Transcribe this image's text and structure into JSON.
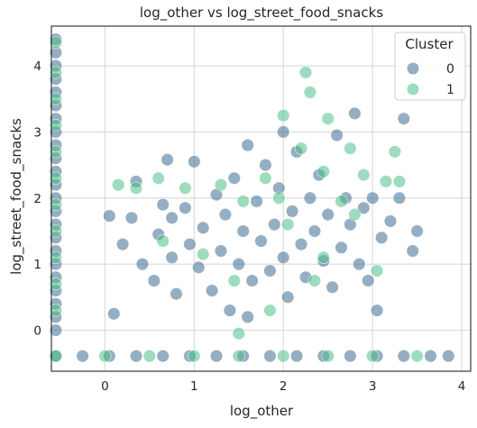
{
  "chart_data": {
    "type": "scatter",
    "title": "log_other vs log_street_food_snacks",
    "xlabel": "log_other",
    "ylabel": "log_street_food_snacks",
    "xlim": [
      -0.6,
      4.1
    ],
    "ylim": [
      -0.62,
      4.6
    ],
    "xticks": [
      0,
      1,
      2,
      3,
      4
    ],
    "yticks": [
      0,
      1,
      2,
      3,
      4
    ],
    "grid": true,
    "legend": {
      "title": "Cluster",
      "placement": "top-right"
    },
    "series": [
      {
        "name": "0",
        "color": "#3e6b8f",
        "points": [
          [
            -0.55,
            4.4
          ],
          [
            -0.55,
            4.2
          ],
          [
            -0.55,
            4.0
          ],
          [
            -0.55,
            3.8
          ],
          [
            -0.55,
            3.6
          ],
          [
            -0.55,
            3.4
          ],
          [
            -0.55,
            3.2
          ],
          [
            -0.55,
            3.0
          ],
          [
            -0.55,
            2.8
          ],
          [
            -0.55,
            2.6
          ],
          [
            -0.55,
            2.4
          ],
          [
            -0.55,
            2.2
          ],
          [
            -0.55,
            2.0
          ],
          [
            -0.55,
            1.8
          ],
          [
            -0.55,
            1.6
          ],
          [
            -0.55,
            1.4
          ],
          [
            -0.55,
            1.2
          ],
          [
            -0.55,
            1.0
          ],
          [
            -0.55,
            0.8
          ],
          [
            -0.55,
            0.6
          ],
          [
            -0.55,
            0.4
          ],
          [
            -0.55,
            0.2
          ],
          [
            -0.55,
            0.0
          ],
          [
            -0.55,
            -0.39
          ],
          [
            -0.25,
            -0.39
          ],
          [
            0.05,
            -0.39
          ],
          [
            0.35,
            -0.39
          ],
          [
            0.65,
            -0.39
          ],
          [
            0.95,
            -0.39
          ],
          [
            1.25,
            -0.39
          ],
          [
            1.55,
            -0.39
          ],
          [
            1.85,
            -0.39
          ],
          [
            2.15,
            -0.39
          ],
          [
            2.45,
            -0.39
          ],
          [
            2.75,
            -0.39
          ],
          [
            3.05,
            -0.39
          ],
          [
            3.35,
            -0.39
          ],
          [
            3.65,
            -0.39
          ],
          [
            3.85,
            -0.39
          ],
          [
            0.05,
            1.73
          ],
          [
            0.1,
            0.25
          ],
          [
            0.2,
            1.3
          ],
          [
            0.3,
            1.7
          ],
          [
            0.35,
            2.25
          ],
          [
            0.42,
            1.0
          ],
          [
            0.55,
            0.75
          ],
          [
            0.6,
            1.45
          ],
          [
            0.65,
            1.9
          ],
          [
            0.7,
            2.58
          ],
          [
            0.75,
            1.1
          ],
          [
            0.8,
            0.55
          ],
          [
            0.9,
            1.85
          ],
          [
            0.95,
            1.3
          ],
          [
            1.0,
            2.55
          ],
          [
            1.05,
            0.95
          ],
          [
            1.1,
            1.55
          ],
          [
            1.2,
            0.6
          ],
          [
            1.25,
            2.05
          ],
          [
            1.3,
            1.2
          ],
          [
            1.35,
            1.75
          ],
          [
            1.4,
            0.3
          ],
          [
            1.45,
            2.3
          ],
          [
            1.5,
            1.0
          ],
          [
            1.55,
            1.5
          ],
          [
            1.6,
            2.8
          ],
          [
            1.65,
            0.75
          ],
          [
            1.7,
            1.95
          ],
          [
            1.75,
            1.35
          ],
          [
            1.8,
            2.5
          ],
          [
            1.85,
            0.9
          ],
          [
            1.9,
            1.6
          ],
          [
            1.95,
            2.15
          ],
          [
            2.0,
            1.1
          ],
          [
            2.05,
            0.5
          ],
          [
            2.1,
            1.8
          ],
          [
            2.15,
            2.7
          ],
          [
            2.2,
            1.3
          ],
          [
            2.25,
            0.8
          ],
          [
            2.3,
            2.0
          ],
          [
            2.35,
            1.5
          ],
          [
            2.4,
            2.35
          ],
          [
            2.45,
            1.05
          ],
          [
            2.5,
            1.75
          ],
          [
            2.55,
            0.65
          ],
          [
            2.6,
            2.95
          ],
          [
            2.65,
            1.25
          ],
          [
            2.7,
            2.0
          ],
          [
            2.75,
            1.6
          ],
          [
            2.8,
            3.28
          ],
          [
            2.85,
            1.0
          ],
          [
            2.9,
            1.85
          ],
          [
            2.95,
            0.75
          ],
          [
            3.0,
            2.0
          ],
          [
            3.05,
            0.3
          ],
          [
            3.1,
            1.4
          ],
          [
            3.2,
            1.65
          ],
          [
            3.3,
            2.0
          ],
          [
            3.35,
            3.2
          ],
          [
            3.45,
            1.2
          ],
          [
            3.5,
            1.5
          ],
          [
            1.6,
            0.2
          ],
          [
            2.0,
            3.0
          ],
          [
            0.75,
            1.7
          ]
        ]
      },
      {
        "name": "1",
        "color": "#4fc08a",
        "points": [
          [
            -0.55,
            4.35
          ],
          [
            -0.55,
            3.9
          ],
          [
            -0.55,
            3.5
          ],
          [
            -0.55,
            3.1
          ],
          [
            -0.55,
            2.7
          ],
          [
            -0.55,
            2.3
          ],
          [
            -0.55,
            1.9
          ],
          [
            -0.55,
            1.5
          ],
          [
            -0.55,
            1.1
          ],
          [
            -0.55,
            0.7
          ],
          [
            -0.55,
            0.3
          ],
          [
            -0.55,
            -0.39
          ],
          [
            0.0,
            -0.39
          ],
          [
            0.5,
            -0.39
          ],
          [
            1.0,
            -0.39
          ],
          [
            1.5,
            -0.39
          ],
          [
            2.0,
            -0.39
          ],
          [
            2.5,
            -0.39
          ],
          [
            3.0,
            -0.39
          ],
          [
            3.5,
            -0.39
          ],
          [
            0.15,
            2.2
          ],
          [
            0.35,
            2.15
          ],
          [
            0.6,
            2.3
          ],
          [
            0.65,
            1.35
          ],
          [
            0.9,
            2.15
          ],
          [
            1.1,
            1.15
          ],
          [
            1.3,
            2.2
          ],
          [
            1.45,
            0.75
          ],
          [
            1.55,
            1.95
          ],
          [
            1.8,
            2.3
          ],
          [
            1.85,
            0.3
          ],
          [
            2.0,
            3.25
          ],
          [
            2.05,
            1.6
          ],
          [
            2.2,
            2.75
          ],
          [
            2.25,
            3.9
          ],
          [
            2.3,
            3.6
          ],
          [
            2.35,
            0.75
          ],
          [
            2.45,
            2.4
          ],
          [
            2.5,
            3.2
          ],
          [
            2.75,
            2.75
          ],
          [
            2.9,
            2.35
          ],
          [
            3.15,
            2.25
          ],
          [
            3.25,
            2.7
          ],
          [
            3.3,
            2.25
          ],
          [
            1.95,
            2.0
          ],
          [
            1.5,
            -0.05
          ],
          [
            2.65,
            1.95
          ],
          [
            2.8,
            1.75
          ],
          [
            3.05,
            0.9
          ],
          [
            2.45,
            1.1
          ]
        ]
      }
    ]
  }
}
